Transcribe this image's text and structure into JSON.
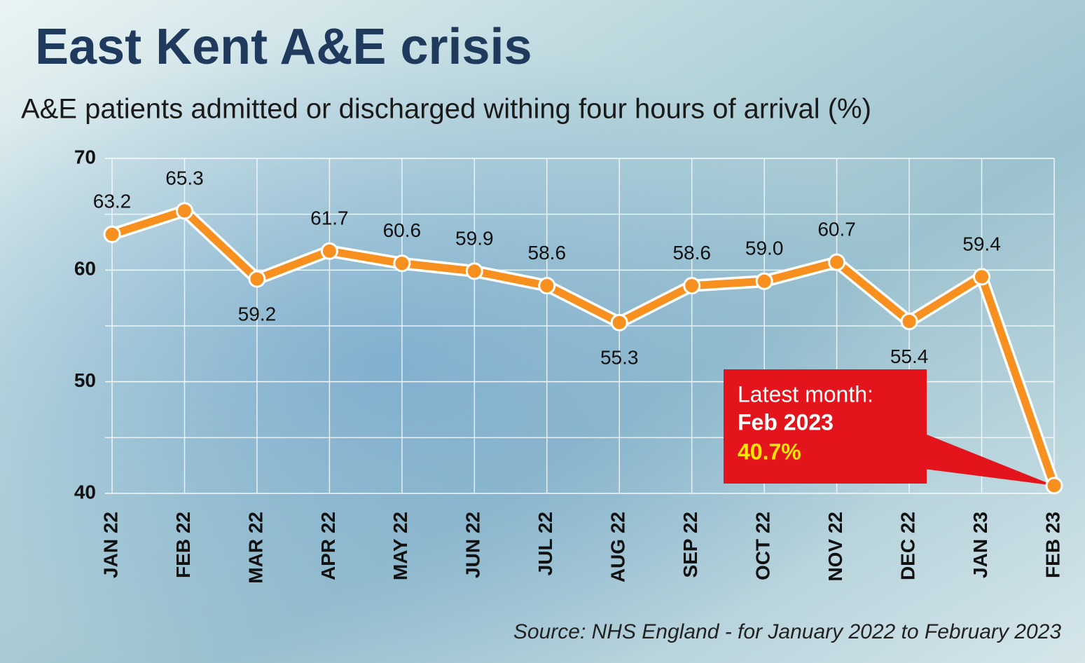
{
  "chart_data": {
    "type": "line",
    "title": "East Kent A&E crisis",
    "subtitle": "A&E patients admitted or discharged withing four hours of arrival (%)",
    "categories": [
      "JAN 22",
      "FEB 22",
      "MAR 22",
      "APR 22",
      "MAY 22",
      "JUN 22",
      "JUL 22",
      "AUG 22",
      "SEP 22",
      "OCT 22",
      "NOV 22",
      "DEC 22",
      "JAN 23",
      "FEB 23"
    ],
    "values": [
      63.2,
      65.3,
      59.2,
      61.7,
      60.6,
      59.9,
      58.6,
      55.3,
      58.6,
      59.0,
      60.7,
      55.4,
      59.4,
      40.7
    ],
    "value_labels": [
      "63.2",
      "65.3",
      "59.2",
      "61.7",
      "60.6",
      "59.9",
      "58.6",
      "55.3",
      "58.6",
      "59.0",
      "60.7",
      "55.4",
      "59.4",
      "40.7%"
    ],
    "color": "#f7901e",
    "ylim": [
      40,
      70
    ],
    "yticks": [
      40,
      50,
      60,
      70
    ],
    "minor_yticks": [
      45,
      55,
      65
    ],
    "grid": true,
    "callout": {
      "heading": "Latest month:",
      "month": "Feb 2023"
    },
    "source": "Source: NHS England - for January 2022 to February 2023"
  }
}
